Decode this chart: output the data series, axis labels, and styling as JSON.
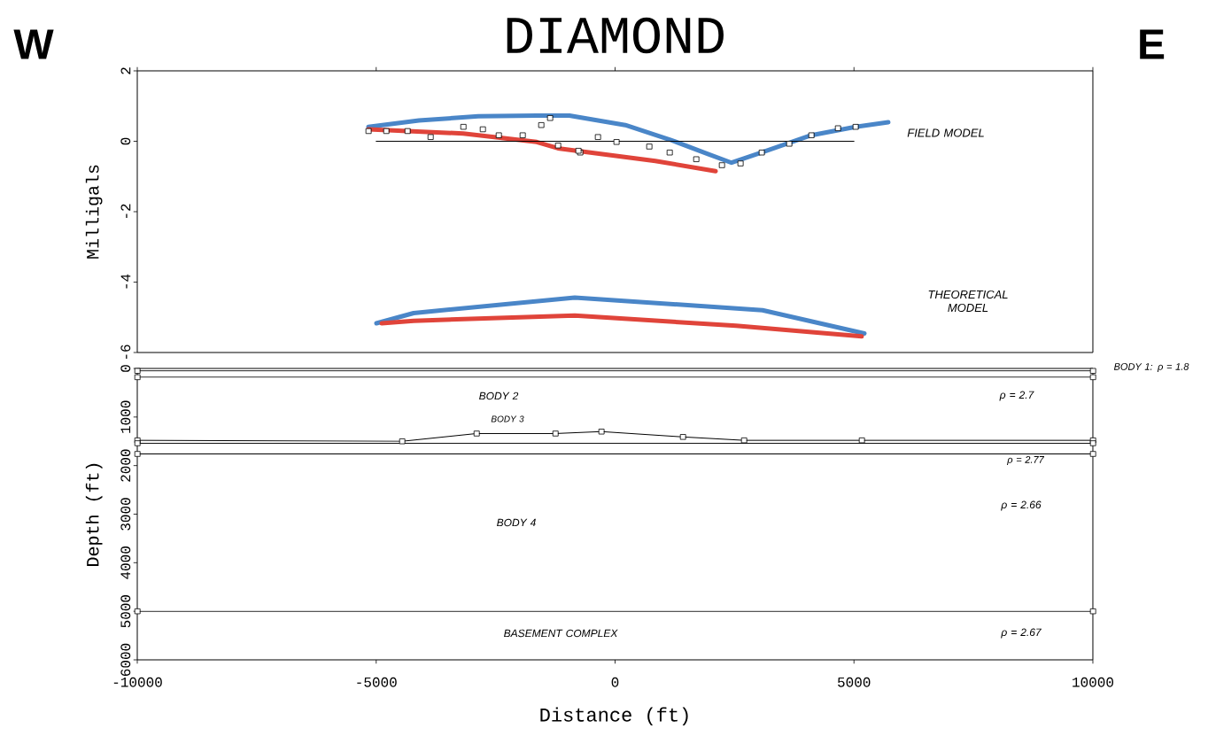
{
  "chart_data": [
    {
      "type": "line",
      "title": "DIAMOND",
      "ylabel": "Milligals",
      "xlim": [
        -10000,
        10000
      ],
      "ylim": [
        -6,
        2
      ],
      "xticks": [
        -10000,
        -5000,
        0,
        5000,
        10000
      ],
      "yticks": [
        -6,
        -4,
        -2,
        0,
        2
      ],
      "tick_labels": "y",
      "grid": false,
      "annotations": [
        "W",
        "E",
        "FIELD MODEL",
        "THEORETICAL MODEL"
      ],
      "series": [
        {
          "type": "line",
          "color": "#4a86c8",
          "marker": "none",
          "x": [
            5718,
            5032,
            4106,
            3067,
            2437,
            1955,
            1140,
            213,
            -955,
            -1640,
            -2864,
            -4106,
            -5163
          ],
          "values": [
            0.54,
            0.41,
            0.17,
            -0.32,
            -0.61,
            -0.37,
            0.05,
            0.46,
            0.73,
            0.73,
            0.71,
            0.59,
            0.41
          ]
        },
        {
          "type": "line",
          "color": "#e0443a",
          "marker": "none",
          "x": [
            2104,
            843,
            -1196,
            -1640,
            -3178,
            -5163
          ],
          "values": [
            -0.85,
            -0.56,
            -0.2,
            -0.02,
            0.22,
            0.34
          ]
        },
        {
          "type": "line",
          "color": "#000000",
          "marker": "none",
          "x": [
            -5000,
            5000
          ],
          "values": [
            0,
            0
          ]
        },
        {
          "type": "scatter",
          "color": "#000000",
          "marker": "square",
          "x": [
            5032,
            4662,
            4106,
            3642,
            3067,
            2622,
            2233,
            1696,
            1140,
            713,
            27,
            -362,
            -733,
            -770,
            -1196,
            -1363,
            -1548,
            -1937,
            -2437,
            -2771,
            -3178,
            -3864,
            -4346,
            -4791,
            -5163
          ],
          "values": [
            0.41,
            0.37,
            0.17,
            -0.07,
            -0.32,
            -0.63,
            -0.68,
            -0.51,
            -0.32,
            -0.15,
            -0.02,
            0.12,
            -0.32,
            -0.27,
            -0.12,
            0.66,
            0.46,
            0.17,
            0.17,
            0.34,
            0.41,
            0.12,
            0.29,
            0.29,
            0.29
          ]
        },
        {
          "type": "line",
          "color": "#4a86c8",
          "marker": "none",
          "x": [
            5218,
            3086,
            -844,
            -4217,
            -4995
          ],
          "values": [
            -5.46,
            -4.8,
            -4.44,
            -4.88,
            -5.17
          ]
        },
        {
          "type": "line",
          "color": "#e0443a",
          "marker": "none",
          "x": [
            5162,
            2530,
            -844,
            -4217,
            -4884
          ],
          "values": [
            -5.54,
            -5.24,
            -4.95,
            -5.1,
            -5.17
          ]
        }
      ]
    },
    {
      "type": "line",
      "xlabel": "Distance (ft)",
      "ylabel": "Depth (ft)",
      "xlim": [
        -10000,
        10000
      ],
      "ylim": [
        6000,
        0
      ],
      "xticks": [
        -10000,
        -5000,
        0,
        5000,
        10000
      ],
      "yticks": [
        0,
        1000,
        2000,
        3000,
        4000,
        5000,
        6000
      ],
      "grid": false,
      "annotations": [
        "BODY 1: ρ = 1.8",
        "ρ = 2.7",
        "ρ = 2.77",
        "ρ = 2.66",
        "ρ = 2.67",
        "BODY 2",
        "BODY 3",
        "BODY 4",
        "BASEMENT COMPLEX"
      ],
      "series": [
        {
          "color": "#000000",
          "marker": "square",
          "x": [
            -10000,
            10000
          ],
          "values": [
            50,
            50
          ]
        },
        {
          "color": "#000000",
          "marker": "square",
          "x": [
            -10000,
            10000
          ],
          "values": [
            180,
            180
          ]
        },
        {
          "color": "#000000",
          "marker": "square",
          "x": [
            -10000,
            -4458,
            -2900,
            -1250,
            -288,
            1418,
            2697,
            5162,
            10000
          ],
          "values": [
            1480,
            1500,
            1340,
            1340,
            1300,
            1410,
            1480,
            1480,
            1480
          ]
        },
        {
          "color": "#000000",
          "marker": "square",
          "x": [
            -10000,
            10000
          ],
          "values": [
            1540,
            1540
          ]
        },
        {
          "color": "#000000",
          "marker": "square",
          "x": [
            -10000,
            10000
          ],
          "values": [
            1760,
            1760
          ]
        },
        {
          "color": "#000000",
          "marker": "square",
          "x": [
            -10000,
            10000
          ],
          "values": [
            5000,
            5000
          ]
        }
      ]
    }
  ]
}
